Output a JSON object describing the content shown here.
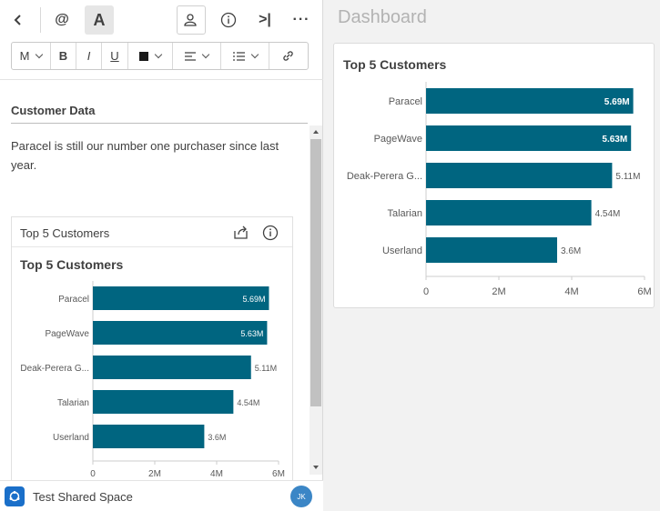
{
  "toolbar": {
    "back_icon": "chevron-left-icon",
    "mention_label": "@",
    "text_label": "A",
    "share_icon": "people-icon",
    "info_icon": "info-icon",
    "collapse_label": ">|",
    "more_label": "···"
  },
  "format_bar": {
    "size_label": "M",
    "bold_label": "B",
    "italic_label": "I",
    "underline_label": "U",
    "color_swatch": "#1a1a1a",
    "align_icon": "align-left-icon",
    "list_icon": "list-icon",
    "link_icon": "link-icon"
  },
  "note": {
    "heading": "Customer Data",
    "paragraph": "Paracel is still our number one purchaser since last year."
  },
  "embedded_card": {
    "header_title": "Top 5 Customers",
    "chart_title": "Top 5 Customers"
  },
  "footer": {
    "space_label": "Test Shared Space",
    "avatar_initials": "JK"
  },
  "dashboard": {
    "title": "Dashboard",
    "card_title": "Top 5 Customers"
  },
  "colors": {
    "bar": "#006580",
    "accent": "#1a6fc9"
  },
  "chart_data": [
    {
      "type": "bar",
      "orientation": "horizontal",
      "title": "Top 5 Customers",
      "categories": [
        "Paracel",
        "PageWave",
        "Deak-Perera G...",
        "Talarian",
        "Userland"
      ],
      "values": [
        5.69,
        5.63,
        5.11,
        4.54,
        3.6
      ],
      "value_labels": [
        "5.69M",
        "5.63M",
        "5.11M",
        "4.54M",
        "3.6M"
      ],
      "xlim": [
        0,
        6
      ],
      "xticks": [
        "0",
        "2M",
        "4M",
        "6M"
      ],
      "grid": false
    },
    {
      "type": "bar",
      "orientation": "horizontal",
      "title": "Top 5 Customers",
      "categories": [
        "Paracel",
        "PageWave",
        "Deak-Perera G...",
        "Talarian",
        "Userland"
      ],
      "values": [
        5.69,
        5.63,
        5.11,
        4.54,
        3.6
      ],
      "value_labels": [
        "5.69M",
        "5.63M",
        "5.11M",
        "4.54M",
        "3.6M"
      ],
      "xlim": [
        0,
        6
      ],
      "xticks": [
        "0",
        "2M",
        "4M",
        "6M"
      ],
      "grid": false
    }
  ]
}
